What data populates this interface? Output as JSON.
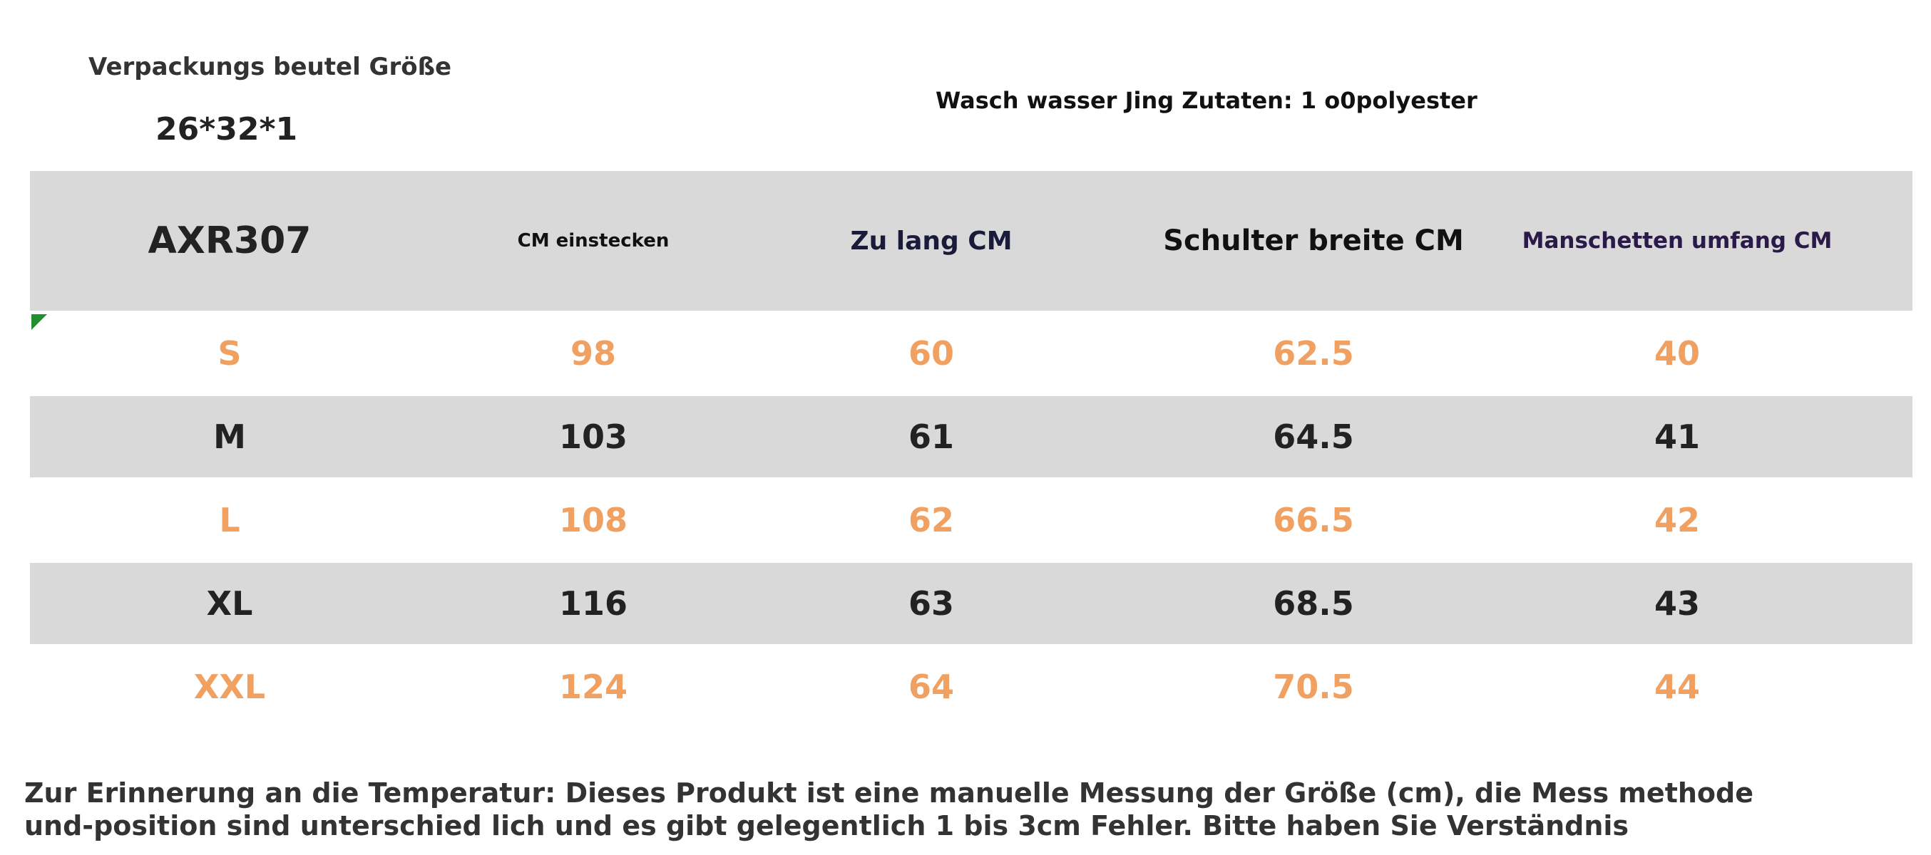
{
  "packaging": {
    "label": "Verpackungs beutel Größe",
    "value": "26*32*1"
  },
  "wash_info": "Wasch wasser Jing Zutaten: 1 o0polyester",
  "table": {
    "headers": [
      "AXR307",
      "CM einstecken",
      "Zu lang CM",
      "Schulter breite CM",
      "Manschetten umfang CM"
    ],
    "rows": [
      [
        "S",
        "98",
        "60",
        "62.5",
        "40"
      ],
      [
        "M",
        "103",
        "61",
        "64.5",
        "41"
      ],
      [
        "L",
        "108",
        "62",
        "66.5",
        "42"
      ],
      [
        "XL",
        "116",
        "63",
        "68.5",
        "43"
      ],
      [
        "XXL",
        "124",
        "64",
        "70.5",
        "44"
      ]
    ]
  },
  "colors": {
    "header_bg": "#d9d9d9",
    "orange_text": "#f0a060",
    "dark_text": "#222222",
    "marker": "#1f8f2f"
  },
  "note": {
    "line1": "Zur Erinnerung an die Temperatur: Dieses Produkt ist eine manuelle Messung der Größe (cm), die Mess methode",
    "line2": "und-position sind unterschied lich und es gibt gelegentlich 1 bis 3cm Fehler. Bitte haben Sie Verständnis"
  }
}
